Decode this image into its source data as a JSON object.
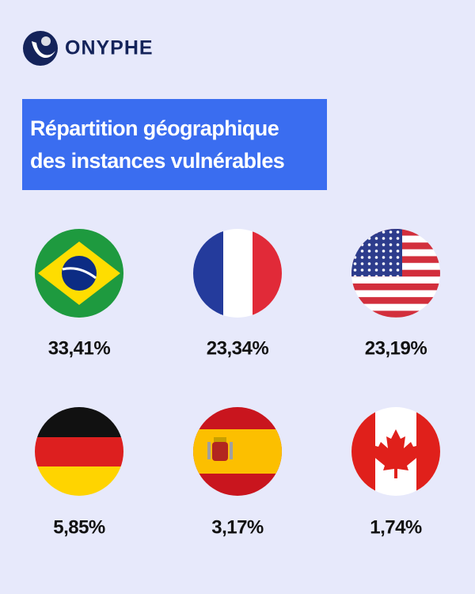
{
  "header": {
    "brand": "ONYPHE"
  },
  "title": {
    "lines": [
      "Répartition géographique",
      "des instances vulnérables"
    ]
  },
  "items": [
    {
      "value": "33,41%"
    },
    {
      "value": "23,34%"
    },
    {
      "value": "23,19%"
    },
    {
      "value": "5,85%"
    },
    {
      "value": "3,17%"
    },
    {
      "value": "1,74%"
    }
  ]
}
